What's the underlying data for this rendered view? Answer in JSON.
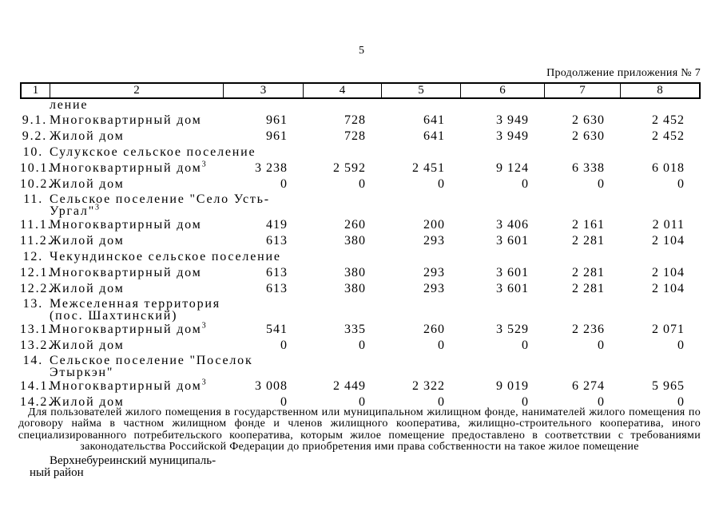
{
  "page": {
    "number": "5",
    "continuation_note": "Продолжение приложения № 7"
  },
  "table": {
    "header_cols": [
      "1",
      "2",
      "3",
      "4",
      "5",
      "6",
      "7",
      "8"
    ],
    "rows": [
      {
        "type": "carryover",
        "num": "",
        "lines": [
          "ление"
        ],
        "sup": "",
        "values": []
      },
      {
        "type": "item",
        "num": "9.1.",
        "lines": [
          "Многоквартирный дом"
        ],
        "sup": "",
        "values": [
          "961",
          "728",
          "641",
          "3 949",
          "2 630",
          "2 452"
        ]
      },
      {
        "type": "item",
        "num": "9.2.",
        "lines": [
          "Жилой дом"
        ],
        "sup": "",
        "values": [
          "961",
          "728",
          "641",
          "3 949",
          "2 630",
          "2 452"
        ]
      },
      {
        "type": "section",
        "num": "10.",
        "lines": [
          "Сулукское сельское поселение"
        ],
        "sup": "",
        "values": []
      },
      {
        "type": "item",
        "num": "10.1.",
        "lines": [
          "Многоквартирный дом"
        ],
        "sup": "3",
        "values": [
          "3 238",
          "2 592",
          "2 451",
          "9 124",
          "6 338",
          "6 018"
        ]
      },
      {
        "type": "item",
        "num": "10.2.",
        "lines": [
          "Жилой дом"
        ],
        "sup": "",
        "values": [
          "0",
          "0",
          "0",
          "0",
          "0",
          "0"
        ]
      },
      {
        "type": "section",
        "num": "11.",
        "lines": [
          "Сельское поселение \"Село Усть-",
          "Ургал\""
        ],
        "sup": "3",
        "values": []
      },
      {
        "type": "item",
        "num": "11.1.",
        "lines": [
          "Многоквартирный дом"
        ],
        "sup": "",
        "values": [
          "419",
          "260",
          "200",
          "3 406",
          "2 161",
          "2 011"
        ]
      },
      {
        "type": "item",
        "num": "11.2.",
        "lines": [
          "Жилой дом"
        ],
        "sup": "",
        "values": [
          "613",
          "380",
          "293",
          "3 601",
          "2 281",
          "2 104"
        ]
      },
      {
        "type": "section",
        "num": "12.",
        "lines": [
          "Чекундинское сельское поселение"
        ],
        "sup": "",
        "values": []
      },
      {
        "type": "item",
        "num": "12.1.",
        "lines": [
          "Многоквартирный дом"
        ],
        "sup": "",
        "values": [
          "613",
          "380",
          "293",
          "3 601",
          "2 281",
          "2 104"
        ]
      },
      {
        "type": "item",
        "num": "12.2.",
        "lines": [
          "Жилой дом"
        ],
        "sup": "",
        "values": [
          "613",
          "380",
          "293",
          "3 601",
          "2 281",
          "2 104"
        ]
      },
      {
        "type": "section",
        "num": "13.",
        "lines": [
          "Межселенная территория",
          "(пос. Шахтинский)"
        ],
        "sup": "",
        "values": []
      },
      {
        "type": "item",
        "num": "13.1.",
        "lines": [
          "Многоквартирный дом"
        ],
        "sup": "3",
        "values": [
          "541",
          "335",
          "260",
          "3 529",
          "2 236",
          "2 071"
        ]
      },
      {
        "type": "item",
        "num": "13.2.",
        "lines": [
          "Жилой дом"
        ],
        "sup": "",
        "values": [
          "0",
          "0",
          "0",
          "0",
          "0",
          "0"
        ]
      },
      {
        "type": "section",
        "num": "14.",
        "lines": [
          "Сельское поселение \"Поселок",
          "Этыркэн\""
        ],
        "sup": "",
        "values": []
      },
      {
        "type": "item",
        "num": "14.1.",
        "lines": [
          "Многоквартирный дом"
        ],
        "sup": "3",
        "values": [
          "3 008",
          "2 449",
          "2 322",
          "9 019",
          "6 274",
          "5 965"
        ]
      },
      {
        "type": "item",
        "num": "14.2.",
        "lines": [
          "Жилой дом"
        ],
        "sup": "",
        "values": [
          "0",
          "0",
          "0",
          "0",
          "0",
          "0"
        ]
      }
    ]
  },
  "footnote": "Для пользователей жилого помещения в государственном или муниципальном жилищном фонде, нанимателей жилого помещения по договору найма в частном жилищном фонде и членов жилищного кооператива, жилищно-строительного кооператива, иного специализированного потребительского кооператива, которым жилое помещение предоставлено в соответствии с требованиями законодательства Российской Федерации до приобретения ими права собственности на такое жилое помещение",
  "footer": {
    "org_line1": "Верхнебуреинский муниципаль-",
    "org_line2": "ный район"
  }
}
